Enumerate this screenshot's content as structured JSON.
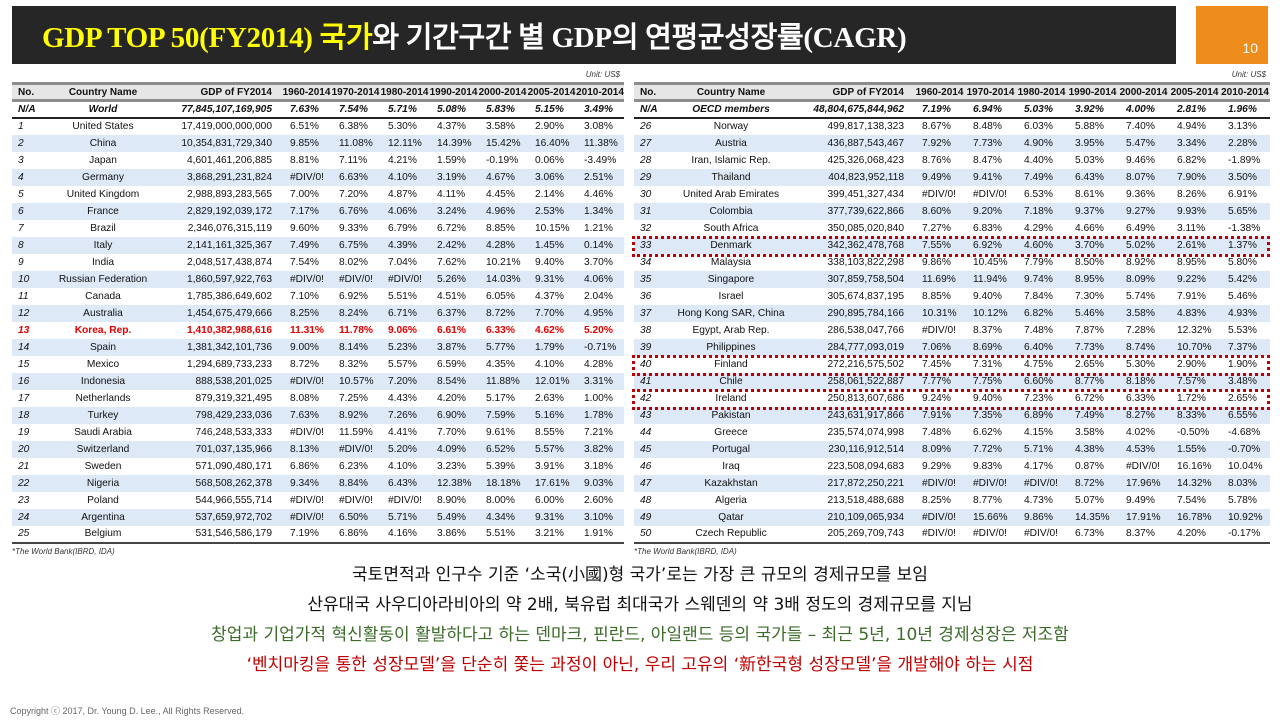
{
  "slide": {
    "title_highlight": "GDP TOP 50(FY2014) 국가",
    "title_rest": "와 기간구간 별 GDP의 연평균성장률(CAGR)",
    "page_number": "10",
    "colors": {
      "title_band": "#262626",
      "title_highlight": "#ffff00",
      "page_box": "#ee8c1c",
      "alt_row": "#dde9f6",
      "korea_row": "#e00000",
      "highlight_box": "#c00000",
      "note_green": "#3c6b2a",
      "note_red": "#c00000"
    }
  },
  "columns": [
    "No.",
    "Country Name",
    "GDP of FY2014",
    "1960-2014",
    "1970-2014",
    "1980-2014",
    "1990-2014",
    "2000-2014",
    "2005-2014",
    "2010-2014"
  ],
  "left_table": {
    "unit": "Unit: US$",
    "aggregate": {
      "no": "N/A",
      "name": "World",
      "gdp": "77,845,107,169,905",
      "cagr": [
        "7.63%",
        "7.54%",
        "5.71%",
        "5.08%",
        "5.83%",
        "5.15%",
        "3.49%"
      ]
    },
    "rows": [
      {
        "no": "1",
        "name": "United States",
        "gdp": "17,419,000,000,000",
        "cagr": [
          "6.51%",
          "6.38%",
          "5.30%",
          "4.37%",
          "3.58%",
          "2.90%",
          "3.08%"
        ]
      },
      {
        "no": "2",
        "name": "China",
        "gdp": "10,354,831,729,340",
        "cagr": [
          "9.85%",
          "11.08%",
          "12.11%",
          "14.39%",
          "15.42%",
          "16.40%",
          "11.38%"
        ]
      },
      {
        "no": "3",
        "name": "Japan",
        "gdp": "4,601,461,206,885",
        "cagr": [
          "8.81%",
          "7.11%",
          "4.21%",
          "1.59%",
          "-0.19%",
          "0.06%",
          "-3.49%"
        ]
      },
      {
        "no": "4",
        "name": "Germany",
        "gdp": "3,868,291,231,824",
        "cagr": [
          "#DIV/0!",
          "6.63%",
          "4.10%",
          "3.19%",
          "4.67%",
          "3.06%",
          "2.51%"
        ]
      },
      {
        "no": "5",
        "name": "United Kingdom",
        "gdp": "2,988,893,283,565",
        "cagr": [
          "7.00%",
          "7.20%",
          "4.87%",
          "4.11%",
          "4.45%",
          "2.14%",
          "4.46%"
        ]
      },
      {
        "no": "6",
        "name": "France",
        "gdp": "2,829,192,039,172",
        "cagr": [
          "7.17%",
          "6.76%",
          "4.06%",
          "3.24%",
          "4.96%",
          "2.53%",
          "1.34%"
        ]
      },
      {
        "no": "7",
        "name": "Brazil",
        "gdp": "2,346,076,315,119",
        "cagr": [
          "9.60%",
          "9.33%",
          "6.79%",
          "6.72%",
          "8.85%",
          "10.15%",
          "1.21%"
        ]
      },
      {
        "no": "8",
        "name": "Italy",
        "gdp": "2,141,161,325,367",
        "cagr": [
          "7.49%",
          "6.75%",
          "4.39%",
          "2.42%",
          "4.28%",
          "1.45%",
          "0.14%"
        ]
      },
      {
        "no": "9",
        "name": "India",
        "gdp": "2,048,517,438,874",
        "cagr": [
          "7.54%",
          "8.02%",
          "7.04%",
          "7.62%",
          "10.21%",
          "9.40%",
          "3.70%"
        ]
      },
      {
        "no": "10",
        "name": "Russian Federation",
        "gdp": "1,860,597,922,763",
        "cagr": [
          "#DIV/0!",
          "#DIV/0!",
          "#DIV/0!",
          "5.26%",
          "14.03%",
          "9.31%",
          "4.06%"
        ]
      },
      {
        "no": "11",
        "name": "Canada",
        "gdp": "1,785,386,649,602",
        "cagr": [
          "7.10%",
          "6.92%",
          "5.51%",
          "4.51%",
          "6.05%",
          "4.37%",
          "2.04%"
        ]
      },
      {
        "no": "12",
        "name": "Australia",
        "gdp": "1,454,675,479,666",
        "cagr": [
          "8.25%",
          "8.24%",
          "6.71%",
          "6.37%",
          "8.72%",
          "7.70%",
          "4.95%"
        ]
      },
      {
        "no": "13",
        "name": "Korea, Rep.",
        "gdp": "1,410,382,988,616",
        "cagr": [
          "11.31%",
          "11.78%",
          "9.06%",
          "6.61%",
          "6.33%",
          "4.62%",
          "5.20%"
        ]
      },
      {
        "no": "14",
        "name": "Spain",
        "gdp": "1,381,342,101,736",
        "cagr": [
          "9.00%",
          "8.14%",
          "5.23%",
          "3.87%",
          "5.77%",
          "1.79%",
          "-0.71%"
        ]
      },
      {
        "no": "15",
        "name": "Mexico",
        "gdp": "1,294,689,733,233",
        "cagr": [
          "8.72%",
          "8.32%",
          "5.57%",
          "6.59%",
          "4.35%",
          "4.10%",
          "4.28%"
        ]
      },
      {
        "no": "16",
        "name": "Indonesia",
        "gdp": "888,538,201,025",
        "cagr": [
          "#DIV/0!",
          "10.57%",
          "7.20%",
          "8.54%",
          "11.88%",
          "12.01%",
          "3.31%"
        ]
      },
      {
        "no": "17",
        "name": "Netherlands",
        "gdp": "879,319,321,495",
        "cagr": [
          "8.08%",
          "7.25%",
          "4.43%",
          "4.20%",
          "5.17%",
          "2.63%",
          "1.00%"
        ]
      },
      {
        "no": "18",
        "name": "Turkey",
        "gdp": "798,429,233,036",
        "cagr": [
          "7.63%",
          "8.92%",
          "7.26%",
          "6.90%",
          "7.59%",
          "5.16%",
          "1.78%"
        ]
      },
      {
        "no": "19",
        "name": "Saudi Arabia",
        "gdp": "746,248,533,333",
        "cagr": [
          "#DIV/0!",
          "11.59%",
          "4.41%",
          "7.70%",
          "9.61%",
          "8.55%",
          "7.21%"
        ]
      },
      {
        "no": "20",
        "name": "Switzerland",
        "gdp": "701,037,135,966",
        "cagr": [
          "8.13%",
          "#DIV/0!",
          "5.20%",
          "4.09%",
          "6.52%",
          "5.57%",
          "3.82%"
        ]
      },
      {
        "no": "21",
        "name": "Sweden",
        "gdp": "571,090,480,171",
        "cagr": [
          "6.86%",
          "6.23%",
          "4.10%",
          "3.23%",
          "5.39%",
          "3.91%",
          "3.18%"
        ]
      },
      {
        "no": "22",
        "name": "Nigeria",
        "gdp": "568,508,262,378",
        "cagr": [
          "9.34%",
          "8.84%",
          "6.43%",
          "12.38%",
          "18.18%",
          "17.61%",
          "9.03%"
        ]
      },
      {
        "no": "23",
        "name": "Poland",
        "gdp": "544,966,555,714",
        "cagr": [
          "#DIV/0!",
          "#DIV/0!",
          "#DIV/0!",
          "8.90%",
          "8.00%",
          "6.00%",
          "2.60%"
        ]
      },
      {
        "no": "24",
        "name": "Argentina",
        "gdp": "537,659,972,702",
        "cagr": [
          "#DIV/0!",
          "6.50%",
          "5.71%",
          "5.49%",
          "4.34%",
          "9.31%",
          "3.10%"
        ]
      },
      {
        "no": "25",
        "name": "Belgium",
        "gdp": "531,546,586,179",
        "cagr": [
          "7.19%",
          "6.86%",
          "4.16%",
          "3.86%",
          "5.51%",
          "3.21%",
          "1.91%"
        ]
      }
    ],
    "source": "*The World Bank(IBRD, IDA)"
  },
  "right_table": {
    "unit": "Unit: US$",
    "aggregate": {
      "no": "N/A",
      "name": "OECD members",
      "gdp": "48,804,675,844,962",
      "cagr": [
        "7.19%",
        "6.94%",
        "5.03%",
        "3.92%",
        "4.00%",
        "2.81%",
        "1.96%"
      ]
    },
    "rows": [
      {
        "no": "26",
        "name": "Norway",
        "gdp": "499,817,138,323",
        "cagr": [
          "8.67%",
          "8.48%",
          "6.03%",
          "5.88%",
          "7.40%",
          "4.94%",
          "3.13%"
        ]
      },
      {
        "no": "27",
        "name": "Austria",
        "gdp": "436,887,543,467",
        "cagr": [
          "7.92%",
          "7.73%",
          "4.90%",
          "3.95%",
          "5.47%",
          "3.34%",
          "2.28%"
        ]
      },
      {
        "no": "28",
        "name": "Iran, Islamic Rep.",
        "gdp": "425,326,068,423",
        "cagr": [
          "8.76%",
          "8.47%",
          "4.40%",
          "5.03%",
          "9.46%",
          "6.82%",
          "-1.89%"
        ]
      },
      {
        "no": "29",
        "name": "Thailand",
        "gdp": "404,823,952,118",
        "cagr": [
          "9.49%",
          "9.41%",
          "7.49%",
          "6.43%",
          "8.07%",
          "7.90%",
          "3.50%"
        ]
      },
      {
        "no": "30",
        "name": "United Arab Emirates",
        "gdp": "399,451,327,434",
        "cagr": [
          "#DIV/0!",
          "#DIV/0!",
          "6.53%",
          "8.61%",
          "9.36%",
          "8.26%",
          "6.91%"
        ]
      },
      {
        "no": "31",
        "name": "Colombia",
        "gdp": "377,739,622,866",
        "cagr": [
          "8.60%",
          "9.20%",
          "7.18%",
          "9.37%",
          "9.27%",
          "9.93%",
          "5.65%"
        ]
      },
      {
        "no": "32",
        "name": "South Africa",
        "gdp": "350,085,020,840",
        "cagr": [
          "7.27%",
          "6.83%",
          "4.29%",
          "4.66%",
          "6.49%",
          "3.11%",
          "-1.38%"
        ]
      },
      {
        "no": "33",
        "name": "Denmark",
        "gdp": "342,362,478,768",
        "cagr": [
          "7.55%",
          "6.92%",
          "4.60%",
          "3.70%",
          "5.02%",
          "2.61%",
          "1.37%"
        ]
      },
      {
        "no": "34",
        "name": "Malaysia",
        "gdp": "338,103,822,298",
        "cagr": [
          "9.86%",
          "10.45%",
          "7.79%",
          "8.50%",
          "8.92%",
          "8.95%",
          "5.80%"
        ]
      },
      {
        "no": "35",
        "name": "Singapore",
        "gdp": "307,859,758,504",
        "cagr": [
          "11.69%",
          "11.94%",
          "9.74%",
          "8.95%",
          "8.09%",
          "9.22%",
          "5.42%"
        ]
      },
      {
        "no": "36",
        "name": "Israel",
        "gdp": "305,674,837,195",
        "cagr": [
          "8.85%",
          "9.40%",
          "7.84%",
          "7.30%",
          "5.74%",
          "7.91%",
          "5.46%"
        ]
      },
      {
        "no": "37",
        "name": "Hong Kong SAR, China",
        "gdp": "290,895,784,166",
        "cagr": [
          "10.31%",
          "10.12%",
          "6.82%",
          "5.46%",
          "3.58%",
          "4.83%",
          "4.93%"
        ]
      },
      {
        "no": "38",
        "name": "Egypt, Arab Rep.",
        "gdp": "286,538,047,766",
        "cagr": [
          "#DIV/0!",
          "8.37%",
          "7.48%",
          "7.87%",
          "7.28%",
          "12.32%",
          "5.53%"
        ]
      },
      {
        "no": "39",
        "name": "Philippines",
        "gdp": "284,777,093,019",
        "cagr": [
          "7.06%",
          "8.69%",
          "6.40%",
          "7.73%",
          "8.74%",
          "10.70%",
          "7.37%"
        ]
      },
      {
        "no": "40",
        "name": "Finland",
        "gdp": "272,216,575,502",
        "cagr": [
          "7.45%",
          "7.31%",
          "4.75%",
          "2.65%",
          "5.30%",
          "2.90%",
          "1.90%"
        ]
      },
      {
        "no": "41",
        "name": "Chile",
        "gdp": "258,061,522,887",
        "cagr": [
          "7.77%",
          "7.75%",
          "6.60%",
          "8.77%",
          "8.18%",
          "7.57%",
          "3.48%"
        ]
      },
      {
        "no": "42",
        "name": "Ireland",
        "gdp": "250,813,607,686",
        "cagr": [
          "9.24%",
          "9.40%",
          "7.23%",
          "6.72%",
          "6.33%",
          "1.72%",
          "2.65%"
        ]
      },
      {
        "no": "43",
        "name": "Pakistan",
        "gdp": "243,631,917,866",
        "cagr": [
          "7.91%",
          "7.35%",
          "6.89%",
          "7.49%",
          "8.27%",
          "8.33%",
          "6.55%"
        ]
      },
      {
        "no": "44",
        "name": "Greece",
        "gdp": "235,574,074,998",
        "cagr": [
          "7.48%",
          "6.62%",
          "4.15%",
          "3.58%",
          "4.02%",
          "-0.50%",
          "-4.68%"
        ]
      },
      {
        "no": "45",
        "name": "Portugal",
        "gdp": "230,116,912,514",
        "cagr": [
          "8.09%",
          "7.72%",
          "5.71%",
          "4.38%",
          "4.53%",
          "1.55%",
          "-0.70%"
        ]
      },
      {
        "no": "46",
        "name": "Iraq",
        "gdp": "223,508,094,683",
        "cagr": [
          "9.29%",
          "9.83%",
          "4.17%",
          "0.87%",
          "#DIV/0!",
          "16.16%",
          "10.04%"
        ]
      },
      {
        "no": "47",
        "name": "Kazakhstan",
        "gdp": "217,872,250,221",
        "cagr": [
          "#DIV/0!",
          "#DIV/0!",
          "#DIV/0!",
          "8.72%",
          "17.96%",
          "14.32%",
          "8.03%"
        ]
      },
      {
        "no": "48",
        "name": "Algeria",
        "gdp": "213,518,488,688",
        "cagr": [
          "8.25%",
          "8.77%",
          "4.73%",
          "5.07%",
          "9.49%",
          "7.54%",
          "5.78%"
        ]
      },
      {
        "no": "49",
        "name": "Qatar",
        "gdp": "210,109,065,934",
        "cagr": [
          "#DIV/0!",
          "15.66%",
          "9.86%",
          "14.35%",
          "17.91%",
          "16.78%",
          "10.92%"
        ]
      },
      {
        "no": "50",
        "name": "Czech Republic",
        "gdp": "205,269,709,743",
        "cagr": [
          "#DIV/0!",
          "#DIV/0!",
          "#DIV/0!",
          "6.73%",
          "8.37%",
          "4.20%",
          "-0.17%"
        ]
      }
    ],
    "source": "*The World Bank(IBRD, IDA)",
    "highlighted_rows": [
      "33",
      "40",
      "42"
    ]
  },
  "notes": [
    {
      "text": "국토면적과 인구수 기준 ‘소국(小國)형 국가’로는 가장 큰 규모의 경제규모를 보임",
      "color": "black"
    },
    {
      "text": "산유대국 사우디아라비아의 약 2배, 북유럽 최대국가 스웨덴의 약 3배 정도의 경제규모를 지님",
      "color": "black"
    },
    {
      "text": "창업과 기업가적 혁신활동이 활발하다고 하는 덴마크, 핀란드, 아일랜드 등의 국가들 – 최근 5년, 10년 경제성장은 저조함",
      "color": "green"
    },
    {
      "text": "‘벤치마킹을 통한 성장모델’을 단순히 쫓는 과정이 아닌, 우리 고유의 ‘新한국형 성장모델’을 개발해야 하는 시점",
      "color": "red"
    }
  ],
  "copyright": "Copyright ⓒ 2017, Dr. Young D. Lee., All Rights Reserved."
}
